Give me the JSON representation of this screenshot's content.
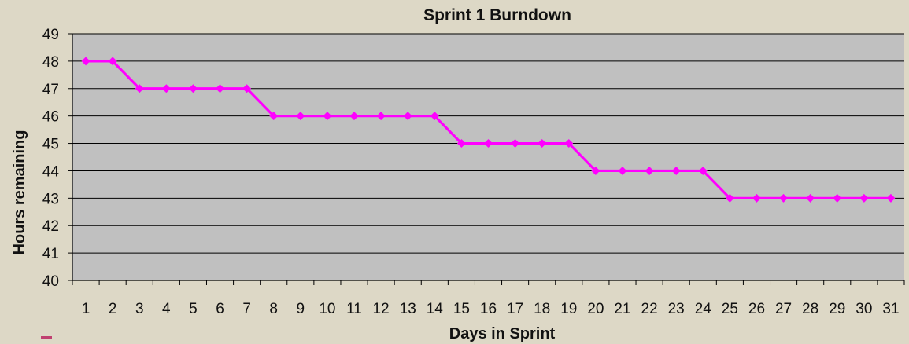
{
  "chart_data": {
    "type": "line",
    "title": "Sprint 1 Burndown",
    "xlabel": "Days in Sprint",
    "ylabel": "Hours remaining",
    "x": [
      1,
      2,
      3,
      4,
      5,
      6,
      7,
      8,
      9,
      10,
      11,
      12,
      13,
      14,
      15,
      16,
      17,
      18,
      19,
      20,
      21,
      22,
      23,
      24,
      25,
      26,
      27,
      28,
      29,
      30,
      31
    ],
    "series": [
      {
        "values": [
          48,
          48,
          47,
          47,
          47,
          47,
          47,
          46,
          46,
          46,
          46,
          46,
          46,
          46,
          45,
          45,
          45,
          45,
          45,
          44,
          44,
          44,
          44,
          44,
          43,
          43,
          43,
          43,
          43,
          43,
          43
        ],
        "color": "#ff00ff",
        "marker": "diamond"
      }
    ],
    "ylim": [
      40,
      49
    ],
    "yticks": [
      40,
      41,
      42,
      43,
      44,
      45,
      46,
      47,
      48,
      49
    ],
    "grid": true,
    "legend": "none",
    "plot_background": "#c0c0c0",
    "page_background": "#ddd8c6"
  }
}
